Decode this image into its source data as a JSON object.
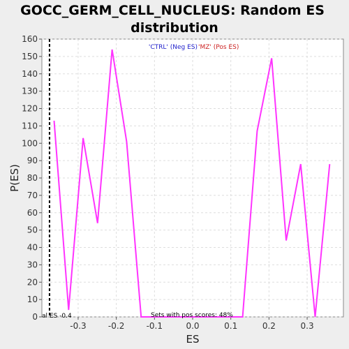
{
  "chart_data": {
    "type": "line",
    "title_line1": "GOCC_GERM_CELL_NUCLEUS: Random ES",
    "title_line2": "distribution",
    "xlabel": "ES",
    "ylabel": "P(ES)",
    "xlim": [
      -0.395,
      0.395
    ],
    "ylim": [
      0,
      160
    ],
    "xticks": [
      -0.3,
      -0.2,
      -0.1,
      0.0,
      0.1,
      0.2,
      0.3
    ],
    "xtick_labels": [
      "-0.3",
      "-0.2",
      "-0.1",
      "0.0",
      "0.1",
      "0.2",
      "0.3"
    ],
    "yticks": [
      0,
      10,
      20,
      30,
      40,
      50,
      60,
      70,
      80,
      90,
      100,
      110,
      120,
      130,
      140,
      150,
      160
    ],
    "ytick_labels": [
      "0",
      "10",
      "20",
      "30",
      "40",
      "50",
      "60",
      "70",
      "80",
      "90",
      "100",
      "110",
      "120",
      "130",
      "140",
      "150",
      "160"
    ],
    "grid": true,
    "legend_neg": "'CTRL' (Neg ES)",
    "legend_pos": "'MZ' (Pos ES)",
    "line_color": "#ff33ff",
    "neg_color": "#2222cc",
    "pos_color": "#cc2222",
    "actual_es": -0.375,
    "actual_es_label": "al ES -0.4",
    "pos_scores_label": "Sets with pos scores: 48%",
    "series": [
      {
        "x": [
          -0.363,
          -0.325,
          -0.287,
          -0.249,
          -0.211,
          -0.173,
          -0.135,
          -0.097,
          -0.059,
          -0.021,
          0.017,
          0.055,
          0.093,
          0.131,
          0.169,
          0.207,
          0.245,
          0.283,
          0.321,
          0.359
        ],
        "y": [
          113,
          4,
          103,
          54,
          154,
          101,
          0,
          0,
          0,
          0,
          0,
          0,
          0,
          0,
          107,
          149,
          44,
          88,
          0,
          88
        ]
      }
    ]
  }
}
